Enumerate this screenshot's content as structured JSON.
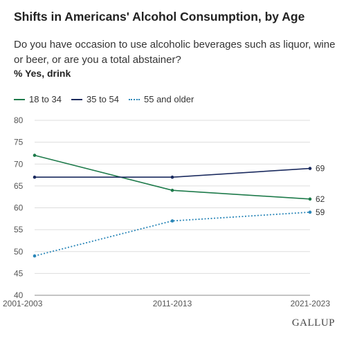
{
  "header": {
    "title": "Shifts in Americans' Alcohol Consumption, by Age",
    "question": "Do you have occasion to use alcoholic beverages such as liquor, wine or beer, or are you a total abstainer?",
    "unit_label": "% Yes, drink"
  },
  "chart_data": {
    "type": "line",
    "title": "Shifts in Americans' Alcohol Consumption, by Age",
    "subtitle": "Do you have occasion to use alcoholic beverages such as liquor, wine or beer, or are you a total abstainer?",
    "ylabel": "% Yes, drink",
    "xlabel": "",
    "x": [
      "2001-2003",
      "2011-2013",
      "2021-2023"
    ],
    "ylim": [
      40,
      80
    ],
    "yticks": [
      40,
      45,
      50,
      55,
      60,
      65,
      70,
      75,
      80
    ],
    "grid": true,
    "legend": "top-left",
    "series": [
      {
        "name": "18 to 34",
        "values": [
          72,
          64,
          62
        ],
        "color": "#1d7a4a",
        "style": "solid",
        "end_label": "62"
      },
      {
        "name": "35 to 54",
        "values": [
          67,
          67,
          69
        ],
        "color": "#1a2a5e",
        "style": "solid",
        "end_label": "69"
      },
      {
        "name": "55 and older",
        "values": [
          49,
          57,
          59
        ],
        "color": "#2a86b8",
        "style": "dotted",
        "end_label": "59"
      }
    ]
  },
  "branding": {
    "logo_text": "GALLUP"
  }
}
